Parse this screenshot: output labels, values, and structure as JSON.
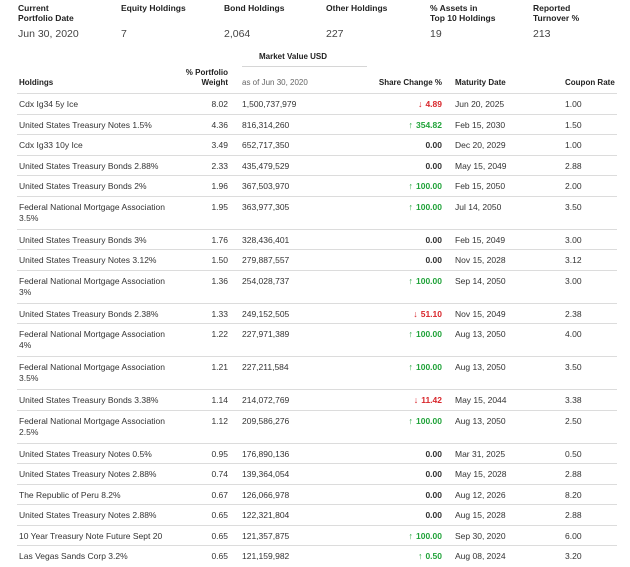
{
  "summary": [
    {
      "label": "Current\nPortfolio Date",
      "value": "Jun 30, 2020"
    },
    {
      "label": "Equity Holdings",
      "value": "7"
    },
    {
      "label": "Bond Holdings",
      "value": "2,064"
    },
    {
      "label": "Other Holdings",
      "value": "227"
    },
    {
      "label": "% Assets in\nTop 10 Holdings",
      "value": "19"
    },
    {
      "label": "Reported\nTurnover %",
      "value": "213"
    }
  ],
  "table": {
    "group_header": "Market Value USD",
    "columns": {
      "holdings": "Holdings",
      "weight": "% Portfolio\nWeight",
      "mv_sub": "as of Jun 30, 2020",
      "share_change": "Share Change %",
      "maturity": "Maturity Date",
      "coupon": "Coupon Rate"
    },
    "rows": [
      {
        "name": "Cdx Ig34 5y Ice",
        "weight": "8.02",
        "mv": "1,500,737,979",
        "dir": "down",
        "change": "4.89",
        "maturity": "Jun 20, 2025",
        "coupon": "1.00"
      },
      {
        "name": "United States Treasury Notes 1.5%",
        "weight": "4.36",
        "mv": "816,314,260",
        "dir": "up",
        "change": "354.82",
        "maturity": "Feb 15, 2030",
        "coupon": "1.50"
      },
      {
        "name": "Cdx Ig33 10y Ice",
        "weight": "3.49",
        "mv": "652,717,350",
        "dir": "none",
        "change": "0.00",
        "maturity": "Dec 20, 2029",
        "coupon": "1.00"
      },
      {
        "name": "United States Treasury Bonds 2.88%",
        "weight": "2.33",
        "mv": "435,479,529",
        "dir": "none",
        "change": "0.00",
        "maturity": "May 15, 2049",
        "coupon": "2.88"
      },
      {
        "name": "United States Treasury Bonds 2%",
        "weight": "1.96",
        "mv": "367,503,970",
        "dir": "up",
        "change": "100.00",
        "maturity": "Feb 15, 2050",
        "coupon": "2.00"
      },
      {
        "name": "Federal National Mortgage Association 3.5%",
        "weight": "1.95",
        "mv": "363,977,305",
        "dir": "up",
        "change": "100.00",
        "maturity": "Jul 14, 2050",
        "coupon": "3.50"
      },
      {
        "name": "United States Treasury Bonds 3%",
        "weight": "1.76",
        "mv": "328,436,401",
        "dir": "none",
        "change": "0.00",
        "maturity": "Feb 15, 2049",
        "coupon": "3.00"
      },
      {
        "name": "United States Treasury Notes 3.12%",
        "weight": "1.50",
        "mv": "279,887,557",
        "dir": "none",
        "change": "0.00",
        "maturity": "Nov 15, 2028",
        "coupon": "3.12"
      },
      {
        "name": "Federal National Mortgage Association 3%",
        "weight": "1.36",
        "mv": "254,028,737",
        "dir": "up",
        "change": "100.00",
        "maturity": "Sep 14, 2050",
        "coupon": "3.00"
      },
      {
        "name": "United States Treasury Bonds 2.38%",
        "weight": "1.33",
        "mv": "249,152,505",
        "dir": "down",
        "change": "51.10",
        "maturity": "Nov 15, 2049",
        "coupon": "2.38"
      },
      {
        "name": "Federal National Mortgage Association 4%",
        "weight": "1.22",
        "mv": "227,971,389",
        "dir": "up",
        "change": "100.00",
        "maturity": "Aug 13, 2050",
        "coupon": "4.00"
      },
      {
        "name": "Federal National Mortgage Association 3.5%",
        "weight": "1.21",
        "mv": "227,211,584",
        "dir": "up",
        "change": "100.00",
        "maturity": "Aug 13, 2050",
        "coupon": "3.50"
      },
      {
        "name": "United States Treasury Bonds 3.38%",
        "weight": "1.14",
        "mv": "214,072,769",
        "dir": "down",
        "change": "11.42",
        "maturity": "May 15, 2044",
        "coupon": "3.38"
      },
      {
        "name": "Federal National Mortgage Association 2.5%",
        "weight": "1.12",
        "mv": "209,586,276",
        "dir": "up",
        "change": "100.00",
        "maturity": "Aug 13, 2050",
        "coupon": "2.50"
      },
      {
        "name": "United States Treasury Notes 0.5%",
        "weight": "0.95",
        "mv": "176,890,136",
        "dir": "none",
        "change": "0.00",
        "maturity": "Mar 31, 2025",
        "coupon": "0.50"
      },
      {
        "name": "United States Treasury Notes 2.88%",
        "weight": "0.74",
        "mv": "139,364,054",
        "dir": "none",
        "change": "0.00",
        "maturity": "May 15, 2028",
        "coupon": "2.88"
      },
      {
        "name": "The Republic of Peru 8.2%",
        "weight": "0.67",
        "mv": "126,066,978",
        "dir": "none",
        "change": "0.00",
        "maturity": "Aug 12, 2026",
        "coupon": "8.20"
      },
      {
        "name": "United States Treasury Notes 2.88%",
        "weight": "0.65",
        "mv": "122,321,804",
        "dir": "none",
        "change": "0.00",
        "maturity": "Aug 15, 2028",
        "coupon": "2.88"
      },
      {
        "name": "10 Year Treasury Note Future Sept 20",
        "weight": "0.65",
        "mv": "121,357,875",
        "dir": "up",
        "change": "100.00",
        "maturity": "Sep 30, 2020",
        "coupon": "6.00"
      },
      {
        "name": "Las Vegas Sands Corp 3.2%",
        "weight": "0.65",
        "mv": "121,159,982",
        "dir": "up",
        "change": "0.50",
        "maturity": "Aug 08, 2024",
        "coupon": "3.20"
      }
    ]
  },
  "icons": {
    "up": "arrow-up-icon",
    "down": "arrow-down-icon"
  },
  "colors": {
    "up": "#21a33a",
    "down": "#d8262b"
  }
}
